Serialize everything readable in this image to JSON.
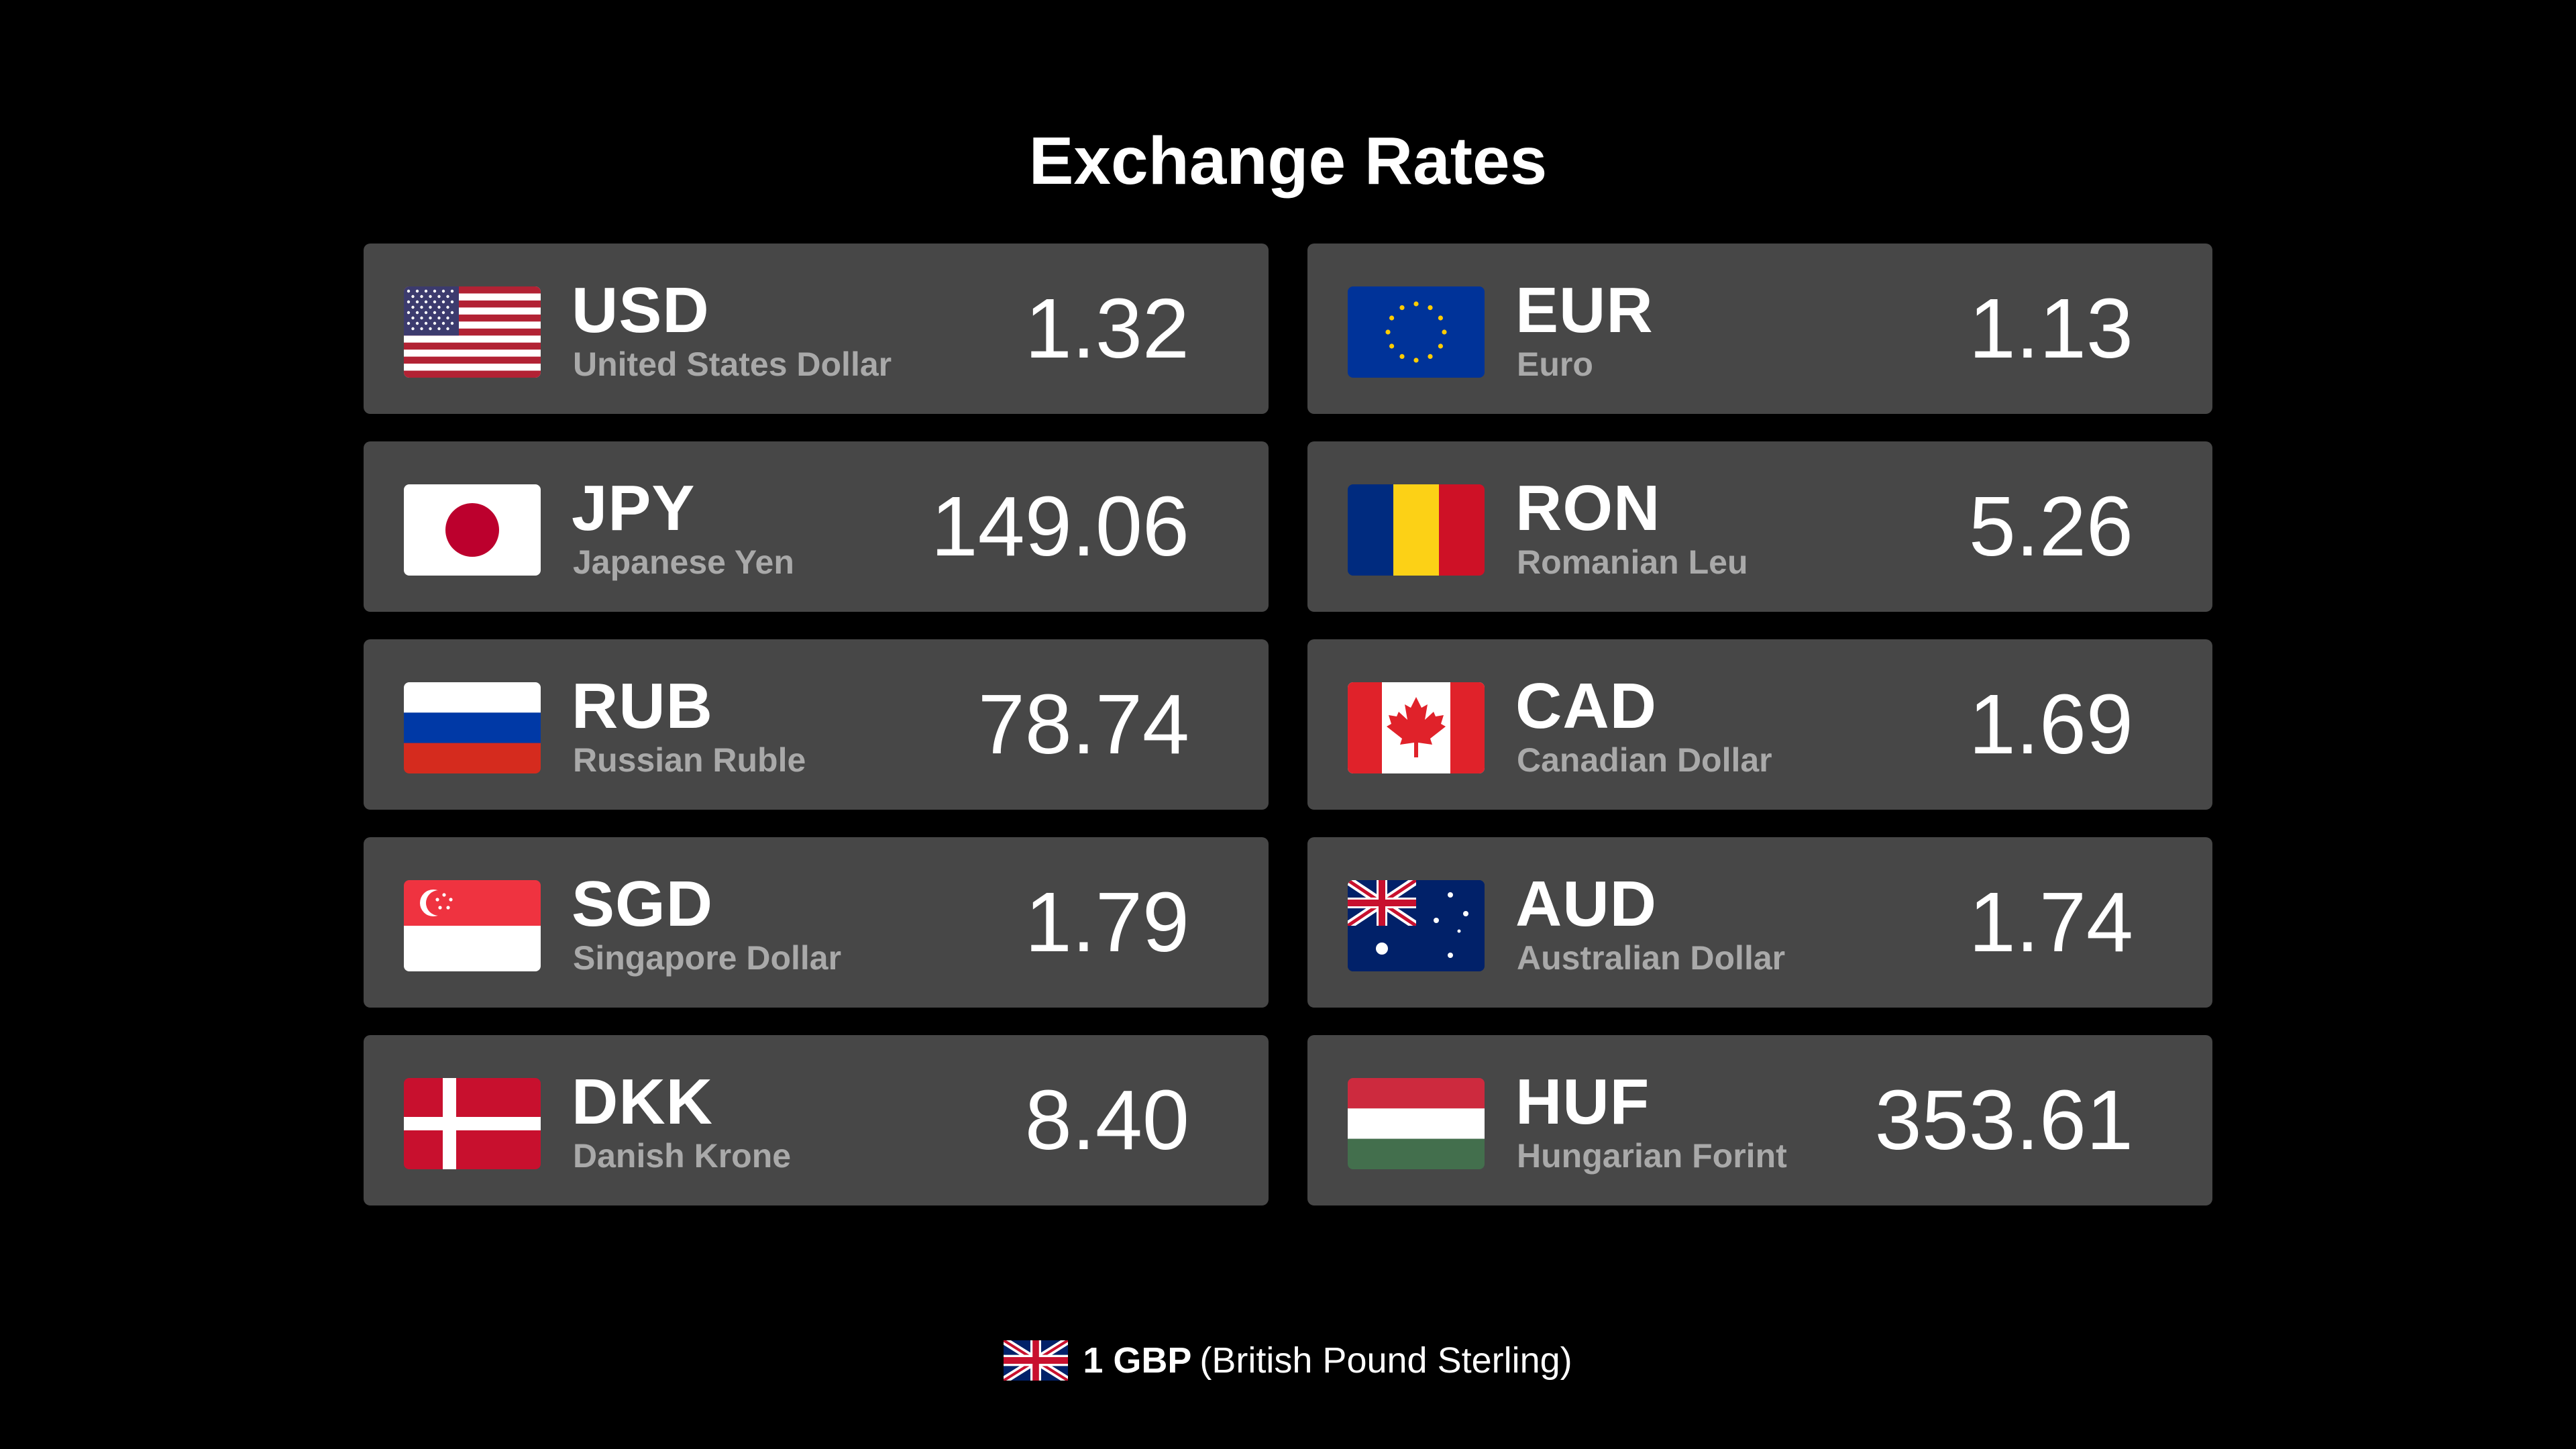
{
  "title": "Exchange Rates",
  "rates": [
    {
      "code": "USD",
      "name": "United States Dollar",
      "rate": "1.32",
      "flag": "us-flag"
    },
    {
      "code": "EUR",
      "name": "Euro",
      "rate": "1.13",
      "flag": "eu-flag"
    },
    {
      "code": "JPY",
      "name": "Japanese Yen",
      "rate": "149.06",
      "flag": "jp-flag"
    },
    {
      "code": "RON",
      "name": "Romanian Leu",
      "rate": "5.26",
      "flag": "ro-flag"
    },
    {
      "code": "RUB",
      "name": "Russian Ruble",
      "rate": "78.74",
      "flag": "ru-flag"
    },
    {
      "code": "CAD",
      "name": "Canadian Dollar",
      "rate": "1.69",
      "flag": "ca-flag"
    },
    {
      "code": "SGD",
      "name": "Singapore Dollar",
      "rate": "1.79",
      "flag": "sg-flag"
    },
    {
      "code": "AUD",
      "name": "Australian Dollar",
      "rate": "1.74",
      "flag": "au-flag"
    },
    {
      "code": "DKK",
      "name": "Danish Krone",
      "rate": "8.40",
      "flag": "dk-flag"
    },
    {
      "code": "HUF",
      "name": "Hungarian Forint",
      "rate": "353.61",
      "flag": "hu-flag"
    }
  ],
  "footer": {
    "base": "1 GBP",
    "description": "(British Pound Sterling)",
    "flag": "gb-flag"
  },
  "colors": {
    "background": "#000000",
    "card": "#474747",
    "text": "#ffffff",
    "subtext": "#a9a9a9"
  }
}
